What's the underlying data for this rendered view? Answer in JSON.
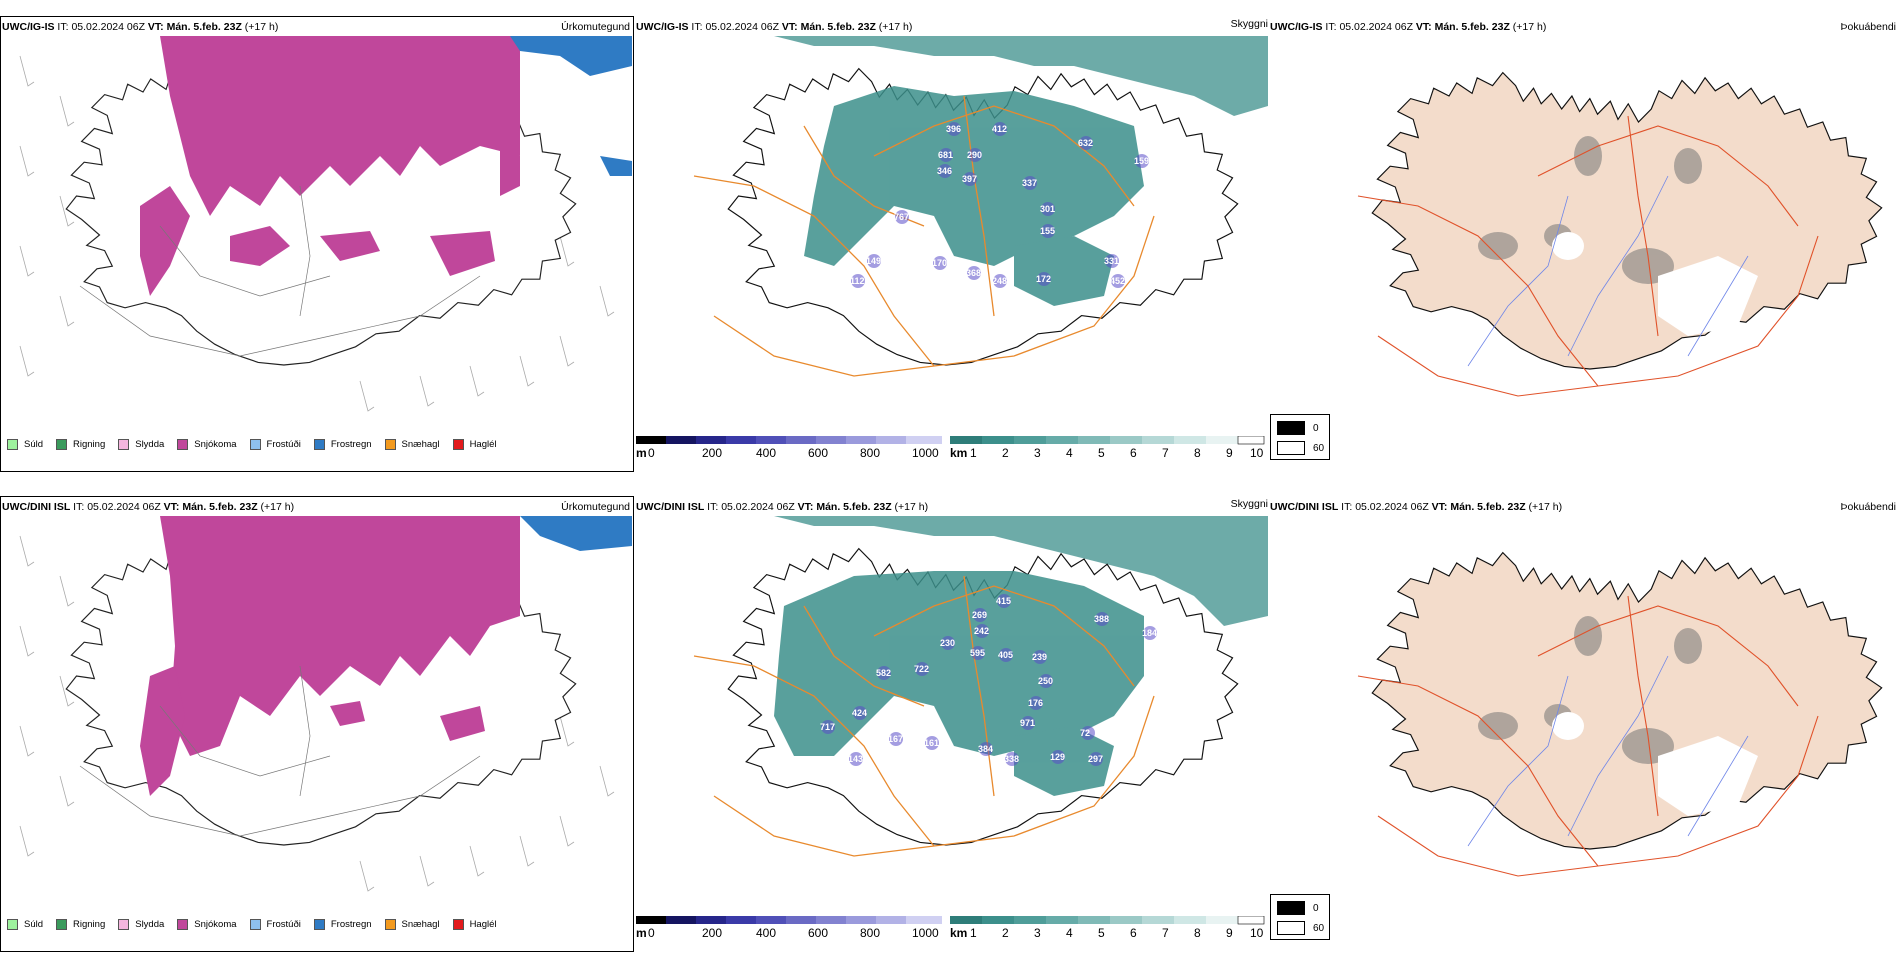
{
  "colors": {
    "snow": "#c0479b",
    "freezing_rain": "#2f7bc4",
    "cloud_teal": "#3c8f8b",
    "road_orange": "#e88a2e",
    "land_fill": "#f3dccb",
    "river_blue": "#6f86e8"
  },
  "rows": [
    {
      "panels": [
        {
          "model": "UWC/IG-IS",
          "it_label": "IT:",
          "it": "05.02.2024 06Z",
          "vt_label": "VT:",
          "vt": "Mán. 5.feb. 23Z",
          "lead": "(+17 h)",
          "type": "Úrkomutegund"
        },
        {
          "model": "UWC/IG-IS",
          "it_label": "IT:",
          "it": "05.02.2024 06Z",
          "vt_label": "VT:",
          "vt": "Mán. 5.feb. 23Z",
          "lead": "(+17 h)",
          "type": "Skyggni"
        },
        {
          "model": "UWC/IG-IS",
          "it_label": "IT:",
          "it": "05.02.2024 06Z",
          "vt_label": "VT:",
          "vt": "Mán. 5.feb. 23Z",
          "lead": "(+17 h)",
          "type": "Þokuábendi"
        }
      ],
      "cloud_base_numbers": [
        "396",
        "412",
        "632",
        "681",
        "290",
        "346",
        "397",
        "159",
        "337",
        "301",
        "767",
        "155",
        "149",
        "170",
        "368",
        "248",
        "172",
        "331",
        "452",
        "112"
      ]
    },
    {
      "panels": [
        {
          "model": "UWC/DINI ISL",
          "it_label": "IT:",
          "it": "05.02.2024 06Z",
          "vt_label": "VT:",
          "vt": "Mán. 5.feb. 23Z",
          "lead": "(+17 h)",
          "type": "Úrkomutegund"
        },
        {
          "model": "UWC/DINI ISL",
          "it_label": "IT:",
          "it": "05.02.2024 06Z",
          "vt_label": "VT:",
          "vt": "Mán. 5.feb. 23Z",
          "lead": "(+17 h)",
          "type": "Skyggni"
        },
        {
          "model": "UWC/DINI ISL",
          "it_label": "IT:",
          "it": "05.02.2024 06Z",
          "vt_label": "VT:",
          "vt": "Mán. 5.feb. 23Z",
          "lead": "(+17 h)",
          "type": "Þokuábendi"
        }
      ],
      "cloud_base_numbers": [
        "415",
        "269",
        "388",
        "242",
        "230",
        "595",
        "405",
        "184",
        "582",
        "722",
        "239",
        "250",
        "424",
        "176",
        "971",
        "717",
        "167",
        "161",
        "384",
        "338",
        "129",
        "72",
        "297",
        "143"
      ]
    }
  ],
  "precip_legend": [
    {
      "label": "Súld",
      "color": "#9ef29e"
    },
    {
      "label": "Rigning",
      "color": "#3a9a5c"
    },
    {
      "label": "Slydda",
      "color": "#f5b6de"
    },
    {
      "label": "Snjókoma",
      "color": "#c0479b"
    },
    {
      "label": "Frostúði",
      "color": "#8ec0ee"
    },
    {
      "label": "Frostregn",
      "color": "#2f7bc4"
    },
    {
      "label": "Snæhagl",
      "color": "#f39a1e"
    },
    {
      "label": "Haglél",
      "color": "#e31a1c"
    }
  ],
  "cloudbase_bar": {
    "unit": "m",
    "ticks": [
      "0",
      "200",
      "400",
      "600",
      "800",
      "1000"
    ]
  },
  "visibility_bar": {
    "unit": "km",
    "ticks": [
      "1",
      "2",
      "3",
      "4",
      "5",
      "6",
      "7",
      "8",
      "9",
      "10"
    ]
  },
  "fog_legend": [
    {
      "label": "0",
      "color": "#000000"
    },
    {
      "label": "60",
      "color": "#ffffff"
    }
  ]
}
